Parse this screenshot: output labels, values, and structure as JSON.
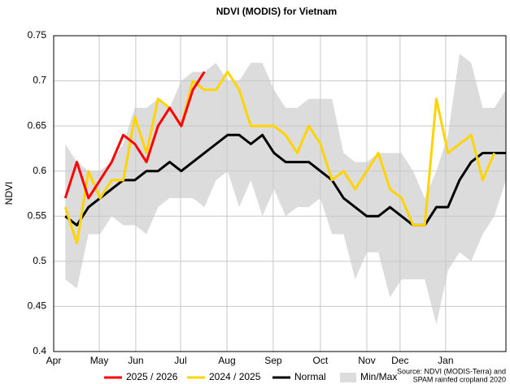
{
  "chart_data": {
    "type": "line",
    "title": "NDVI (MODIS) for Vietnam",
    "y_label": "NDVI",
    "source": [
      "Source: NDVI (MODIS-Terra) and",
      "SPAM rainfed cropland 2020"
    ],
    "x": [
      1,
      2,
      3,
      4,
      5,
      6,
      7,
      8,
      9,
      10,
      11,
      12,
      13,
      14,
      15,
      16,
      17,
      18,
      19,
      20,
      21,
      22,
      23,
      24,
      25,
      26,
      27,
      28,
      29,
      30,
      31,
      32,
      33,
      34,
      35,
      36,
      37,
      38,
      39
    ],
    "xlim": [
      0,
      39
    ],
    "xticks": [
      {
        "value": 0,
        "label": "Apr"
      },
      {
        "value": 3.93,
        "label": "May"
      },
      {
        "value": 7.08,
        "label": "Jun"
      },
      {
        "value": 10.94,
        "label": "Jul"
      },
      {
        "value": 14.94,
        "label": "Aug"
      },
      {
        "value": 18.93,
        "label": "Sep"
      },
      {
        "value": 23.0,
        "label": "Oct"
      },
      {
        "value": 27.0,
        "label": "Nov"
      },
      {
        "value": 29.87,
        "label": "Dec"
      },
      {
        "value": 33.8,
        "label": "Jan"
      }
    ],
    "ylim": [
      0.4,
      0.75
    ],
    "yticks": [
      0.4,
      0.45,
      0.5,
      0.55,
      0.6,
      0.65,
      0.7,
      0.75
    ],
    "grid": true,
    "legend": "bottom",
    "band": {
      "name": "Min/Max",
      "color": "#dcdcdc",
      "max": [
        0.63,
        0.61,
        0.6,
        0.6,
        0.61,
        0.63,
        0.67,
        0.67,
        0.68,
        0.67,
        0.7,
        0.71,
        0.71,
        0.72,
        0.7,
        0.7,
        0.72,
        0.72,
        0.69,
        0.67,
        0.67,
        0.68,
        0.68,
        0.68,
        0.62,
        0.61,
        0.61,
        0.62,
        0.62,
        0.62,
        0.6,
        0.57,
        0.6,
        0.64,
        0.73,
        0.72,
        0.67,
        0.67,
        0.69
      ],
      "min": [
        0.48,
        0.47,
        0.53,
        0.53,
        0.55,
        0.54,
        0.54,
        0.53,
        0.56,
        0.57,
        0.57,
        0.57,
        0.56,
        0.59,
        0.6,
        0.56,
        0.59,
        0.55,
        0.58,
        0.55,
        0.56,
        0.56,
        0.57,
        0.53,
        0.53,
        0.48,
        0.51,
        0.51,
        0.46,
        0.48,
        0.48,
        0.48,
        0.43,
        0.49,
        0.51,
        0.5,
        0.53,
        0.55,
        0.59
      ]
    },
    "series": [
      {
        "name": "2025 / 2026",
        "color": "#ff0000",
        "values": [
          0.57,
          0.61,
          0.57,
          0.59,
          0.61,
          0.64,
          0.63,
          0.61,
          0.65,
          0.67,
          0.65,
          0.69,
          0.71,
          null,
          null,
          null,
          null,
          null,
          null,
          null,
          null,
          null,
          null,
          null,
          null,
          null,
          null,
          null,
          null,
          null,
          null,
          null,
          null,
          null,
          null,
          null,
          null,
          null,
          null
        ]
      },
      {
        "name": "2024 / 2025",
        "color": "#ffd400",
        "values": [
          0.56,
          0.52,
          0.6,
          0.57,
          0.59,
          0.59,
          0.66,
          0.62,
          0.68,
          0.67,
          0.65,
          0.7,
          0.69,
          0.69,
          0.71,
          0.69,
          0.65,
          0.65,
          0.65,
          0.64,
          0.62,
          0.65,
          0.63,
          0.59,
          0.6,
          0.58,
          0.6,
          0.62,
          0.58,
          0.57,
          0.54,
          0.54,
          0.68,
          0.62,
          0.63,
          0.64,
          0.59,
          0.62,
          null
        ]
      },
      {
        "name": "Normal",
        "color": "#000000",
        "values": [
          0.55,
          0.54,
          0.56,
          0.57,
          0.58,
          0.59,
          0.59,
          0.6,
          0.6,
          0.61,
          0.6,
          0.61,
          0.62,
          0.63,
          0.64,
          0.64,
          0.63,
          0.64,
          0.62,
          0.61,
          0.61,
          0.61,
          0.6,
          0.59,
          0.57,
          0.56,
          0.55,
          0.55,
          0.56,
          0.55,
          0.54,
          0.54,
          0.56,
          0.56,
          0.59,
          0.61,
          0.62,
          0.62,
          0.62
        ]
      }
    ]
  }
}
